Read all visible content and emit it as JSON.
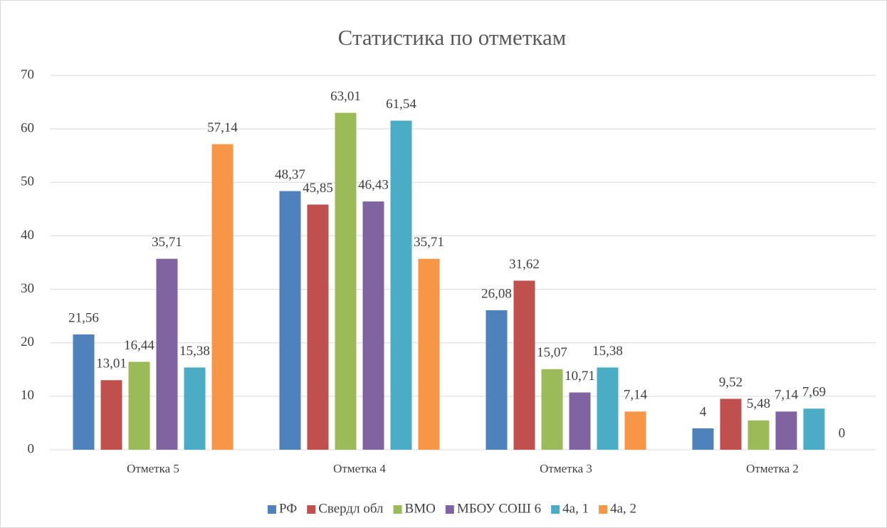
{
  "chart_data": {
    "type": "bar",
    "title": "Статистика по отметкам",
    "categories": [
      "Отметка 5",
      "Отметка 4",
      "Отметка 3",
      "Отметка 2"
    ],
    "series": [
      {
        "name": "РФ",
        "color": "#4f81bd",
        "values": [
          21.56,
          48.37,
          26.08,
          4
        ],
        "value_labels": [
          "21,56",
          "48,37",
          "26,08",
          "4"
        ]
      },
      {
        "name": "Свердл обл",
        "color": "#c0504d",
        "values": [
          13.01,
          45.85,
          31.62,
          9.52
        ],
        "value_labels": [
          "13,01",
          "45,85",
          "31,62",
          "9,52"
        ]
      },
      {
        "name": "ВМО",
        "color": "#9bbb59",
        "values": [
          16.44,
          63.01,
          15.07,
          5.48
        ],
        "value_labels": [
          "16,44",
          "63,01",
          "15,07",
          "5,48"
        ]
      },
      {
        "name": "МБОУ СОШ 6",
        "color": "#8064a2",
        "values": [
          35.71,
          46.43,
          10.71,
          7.14
        ],
        "value_labels": [
          "35,71",
          "46,43",
          "10,71",
          "7,14"
        ]
      },
      {
        "name": "4а, 1",
        "color": "#4bacc6",
        "values": [
          15.38,
          61.54,
          15.38,
          7.69
        ],
        "value_labels": [
          "15,38",
          "61,54",
          "15,38",
          "7,69"
        ]
      },
      {
        "name": "4а, 2",
        "color": "#f79646",
        "values": [
          57.14,
          35.71,
          7.14,
          0
        ],
        "value_labels": [
          "57,14",
          "35,71",
          "7,14",
          "0"
        ]
      }
    ],
    "ylim": [
      0,
      70
    ],
    "yticks": [
      0,
      10,
      20,
      30,
      40,
      50,
      60,
      70
    ],
    "grid": true,
    "legend": "bottom"
  }
}
